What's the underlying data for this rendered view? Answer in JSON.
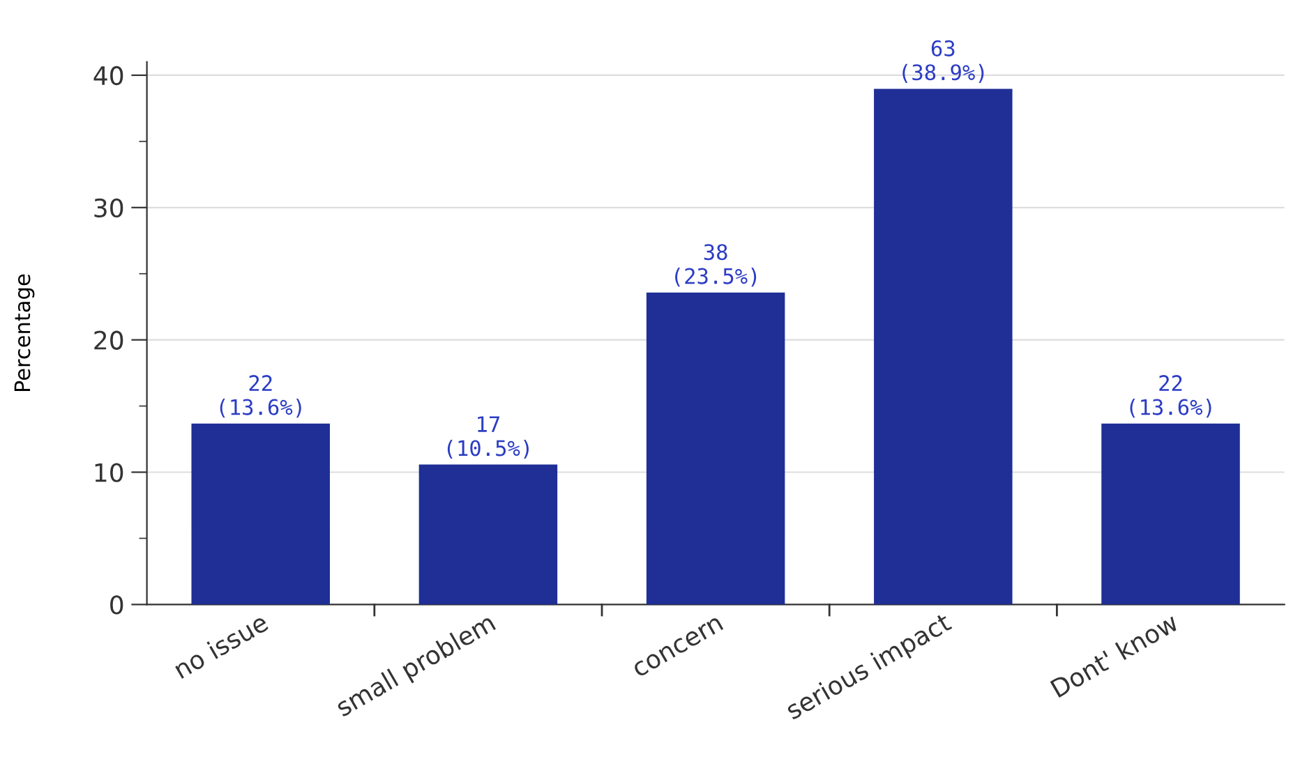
{
  "chart_data": {
    "type": "bar",
    "ylabel": "Percentage",
    "categories": [
      "no issue",
      "small problem",
      "concern",
      "serious impact",
      "Dont' know"
    ],
    "values": [
      13.6,
      10.5,
      23.5,
      38.9,
      13.6
    ],
    "color": "#1f2f96",
    "value_labels": [
      "22\n(13.6%)",
      "17\n(10.5%)",
      "38\n(23.5%)",
      "63\n(38.9%)",
      "22\n(13.6%)"
    ],
    "ylim": [
      0,
      41
    ],
    "yticks": [
      0,
      10,
      20,
      30,
      40
    ],
    "grid": "y"
  }
}
